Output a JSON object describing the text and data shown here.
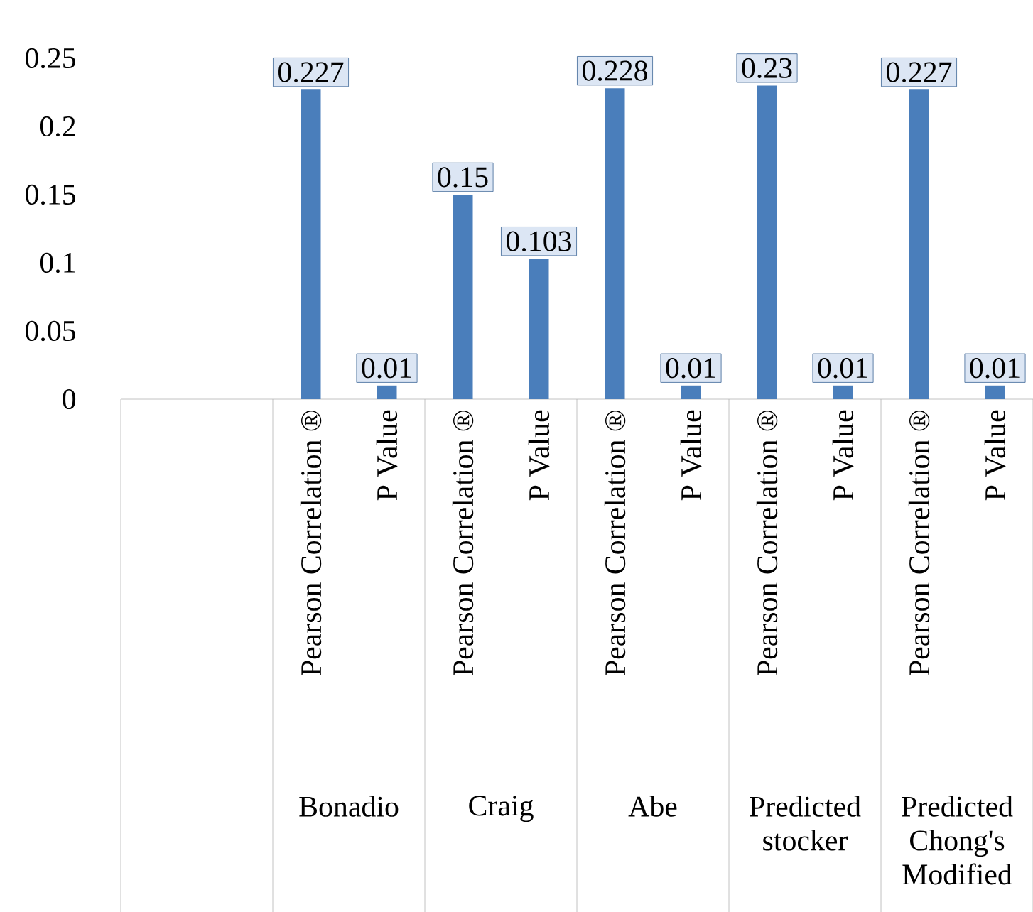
{
  "chart_data": {
    "type": "bar",
    "categories": [
      null,
      null,
      "Pearson Correlation ®",
      "P Value",
      "Pearson Correlation ®",
      "P Value",
      "Pearson Correlation ®",
      "P Value",
      "Pearson Correlation ®",
      "P Value",
      "Pearson Correlation ®",
      "P Value"
    ],
    "values": [
      null,
      null,
      0.227,
      0.01,
      0.15,
      0.103,
      0.228,
      0.01,
      0.23,
      0.01,
      0.227,
      0.01
    ],
    "color": "#4a7ebb",
    "data_labels": true,
    "ylim": [
      0,
      0.25
    ],
    "yticks": [
      0,
      0.05,
      0.1,
      0.15,
      0.2,
      0.25
    ],
    "annotations": [
      "Bonadio",
      "Craig",
      "Abe",
      "Predicted stocker",
      "Predicted Chong's Modified"
    ]
  }
}
